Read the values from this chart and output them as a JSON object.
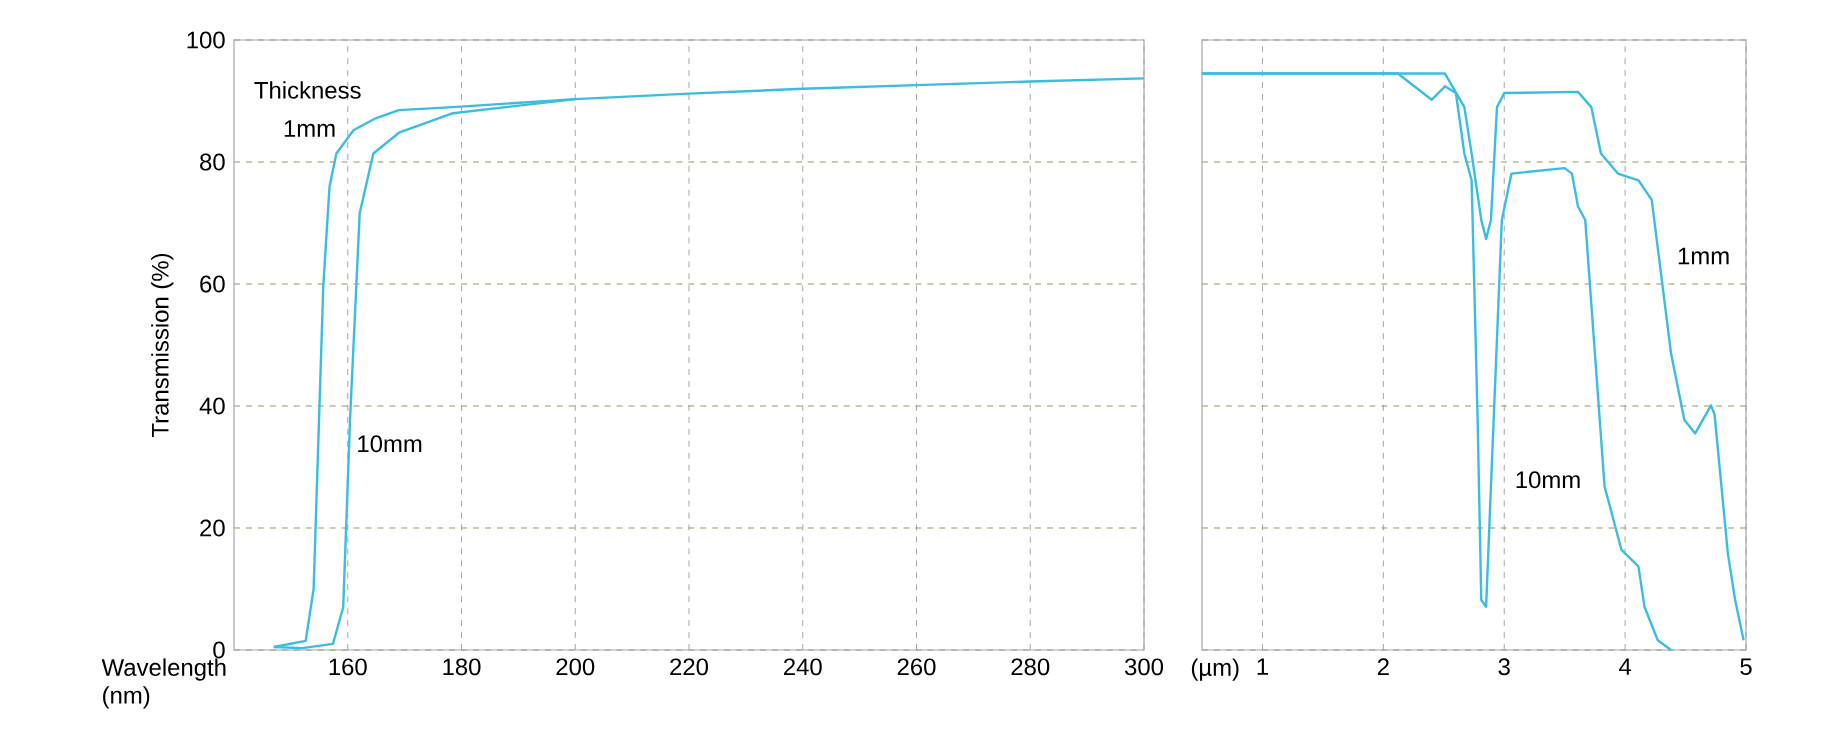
{
  "chart_data": [
    {
      "type": "line",
      "xlabel": "Wavelength (nm)",
      "ylabel": "Transmission (%)",
      "xlim": [
        140,
        300
      ],
      "ylim": [
        0,
        100
      ],
      "xticks": [
        160,
        180,
        200,
        220,
        240,
        260,
        280,
        300
      ],
      "yticks": [
        0,
        20,
        40,
        60,
        80,
        100
      ],
      "grid": true,
      "series": [
        {
          "name": "1mm",
          "color": "#3bbde0",
          "x": [
            147,
            152.6,
            154,
            155.7,
            156.8,
            158,
            161,
            165,
            169,
            178.5,
            200,
            220,
            240,
            260,
            280,
            300
          ],
          "values": [
            0.5,
            1.5,
            10,
            59.7,
            76,
            81.4,
            85.2,
            87.2,
            88.5,
            89,
            90.3,
            91.2,
            92,
            92.6,
            93.2,
            93.7
          ]
        },
        {
          "name": "10mm",
          "color": "#3bbde0",
          "x": [
            147,
            152,
            157.4,
            159.2,
            160.4,
            162.1,
            164.5,
            169,
            178.5,
            200
          ],
          "values": [
            0.5,
            0.3,
            1,
            7,
            37.7,
            71.6,
            81.4,
            84.8,
            88,
            90.3
          ]
        }
      ],
      "annotations": [
        "Thickness"
      ]
    },
    {
      "type": "line",
      "xlabel": "(µm)",
      "xlim": [
        0.5,
        5
      ],
      "ylim": [
        0,
        100
      ],
      "xticks": [
        1,
        2,
        3,
        4,
        5
      ],
      "yticks": [
        0,
        20,
        40,
        60,
        80,
        100
      ],
      "grid": true,
      "tick_labels": "x",
      "series": [
        {
          "name": "1mm",
          "color": "#3bbde0",
          "x": [
            0.5,
            2.1,
            2.51,
            2.67,
            2.73,
            2.81,
            2.85,
            2.89,
            2.94,
            3.0,
            3.61,
            3.72,
            3.8,
            3.94,
            4.11,
            4.22,
            4.38,
            4.49,
            4.58,
            4.71,
            4.74,
            4.85,
            4.91,
            4.98
          ],
          "values": [
            94.5,
            94.5,
            94.5,
            89,
            81.4,
            70.5,
            67.4,
            70.5,
            89,
            91.3,
            91.5,
            89,
            81.4,
            78.1,
            77,
            73.8,
            48.6,
            37.7,
            35.5,
            40.1,
            38.6,
            15.8,
            8.2,
            1.6
          ]
        },
        {
          "name": "10mm",
          "color": "#3bbde0",
          "x": [
            0.5,
            2.12,
            2.4,
            2.51,
            2.6,
            2.67,
            2.73,
            2.78,
            2.81,
            2.85,
            2.89,
            2.98,
            3.06,
            3.5,
            3.56,
            3.61,
            3.67,
            3.75,
            3.83,
            3.97,
            4.11,
            4.16,
            4.27,
            4.38
          ],
          "values": [
            94.5,
            94.5,
            90.2,
            92.4,
            91.3,
            81.4,
            77,
            37.7,
            8.2,
            7.1,
            26.8,
            70.5,
            78.1,
            79,
            78.1,
            72.7,
            70.5,
            48.6,
            26.8,
            16.4,
            13.7,
            7.1,
            1.6,
            0
          ]
        }
      ]
    }
  ]
}
